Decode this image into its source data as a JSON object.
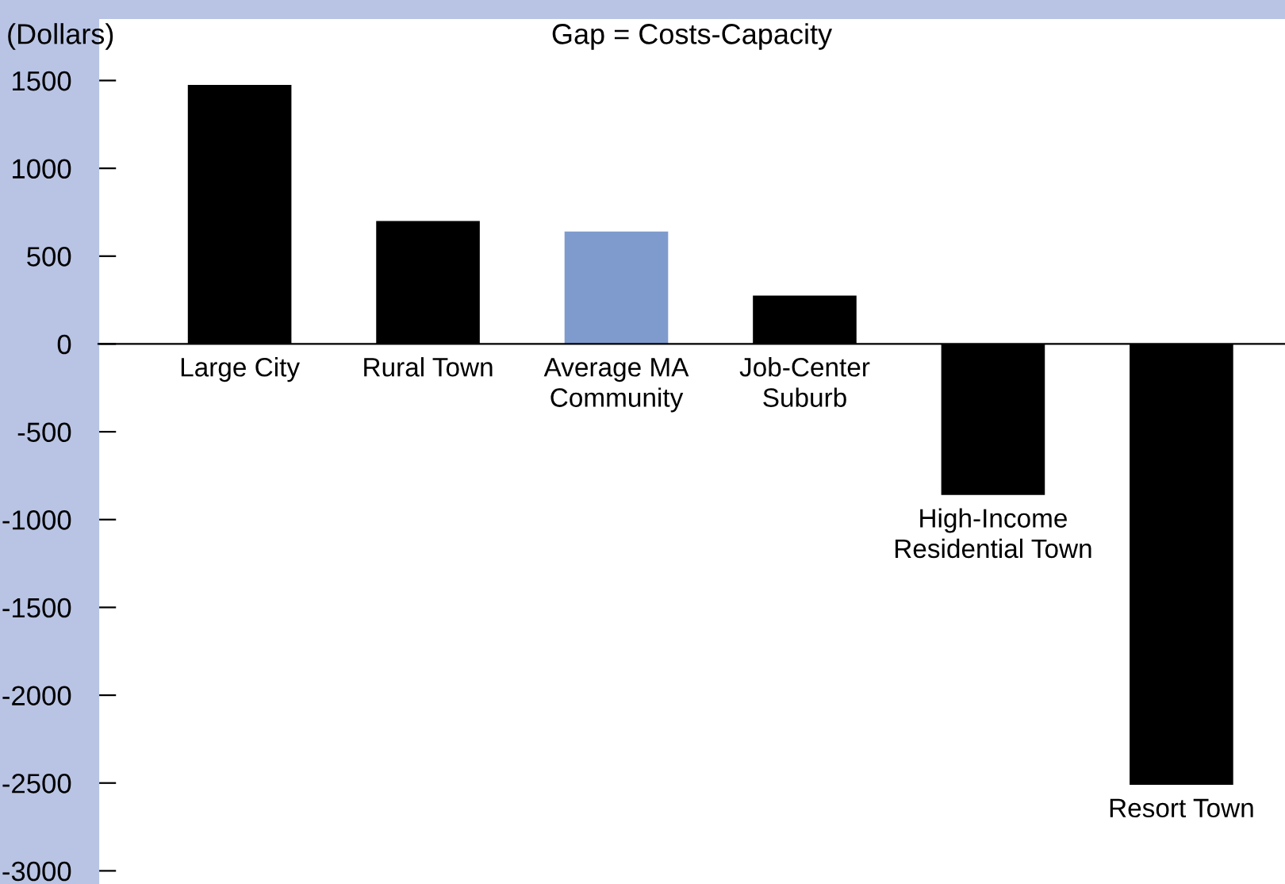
{
  "chart_data": {
    "type": "bar",
    "title": "Gap = Costs-Capacity",
    "ylabel": "(Dollars)",
    "categories": [
      "Large City",
      "Rural Town",
      "Average MA\nCommunity",
      "Job-Center\nSuburb",
      "High-Income\nResidential Town",
      "Resort Town"
    ],
    "values": [
      1475,
      700,
      640,
      275,
      -860,
      -2510
    ],
    "colors": [
      "#000000",
      "#000000",
      "#7f9bcd",
      "#000000",
      "#000000",
      "#000000"
    ],
    "ylim": [
      -3075,
      1850
    ],
    "yticks": [
      -3000,
      -2500,
      -2000,
      -1500,
      -1000,
      -500,
      0,
      500,
      1000,
      1500
    ],
    "grid": false,
    "legend": false
  }
}
